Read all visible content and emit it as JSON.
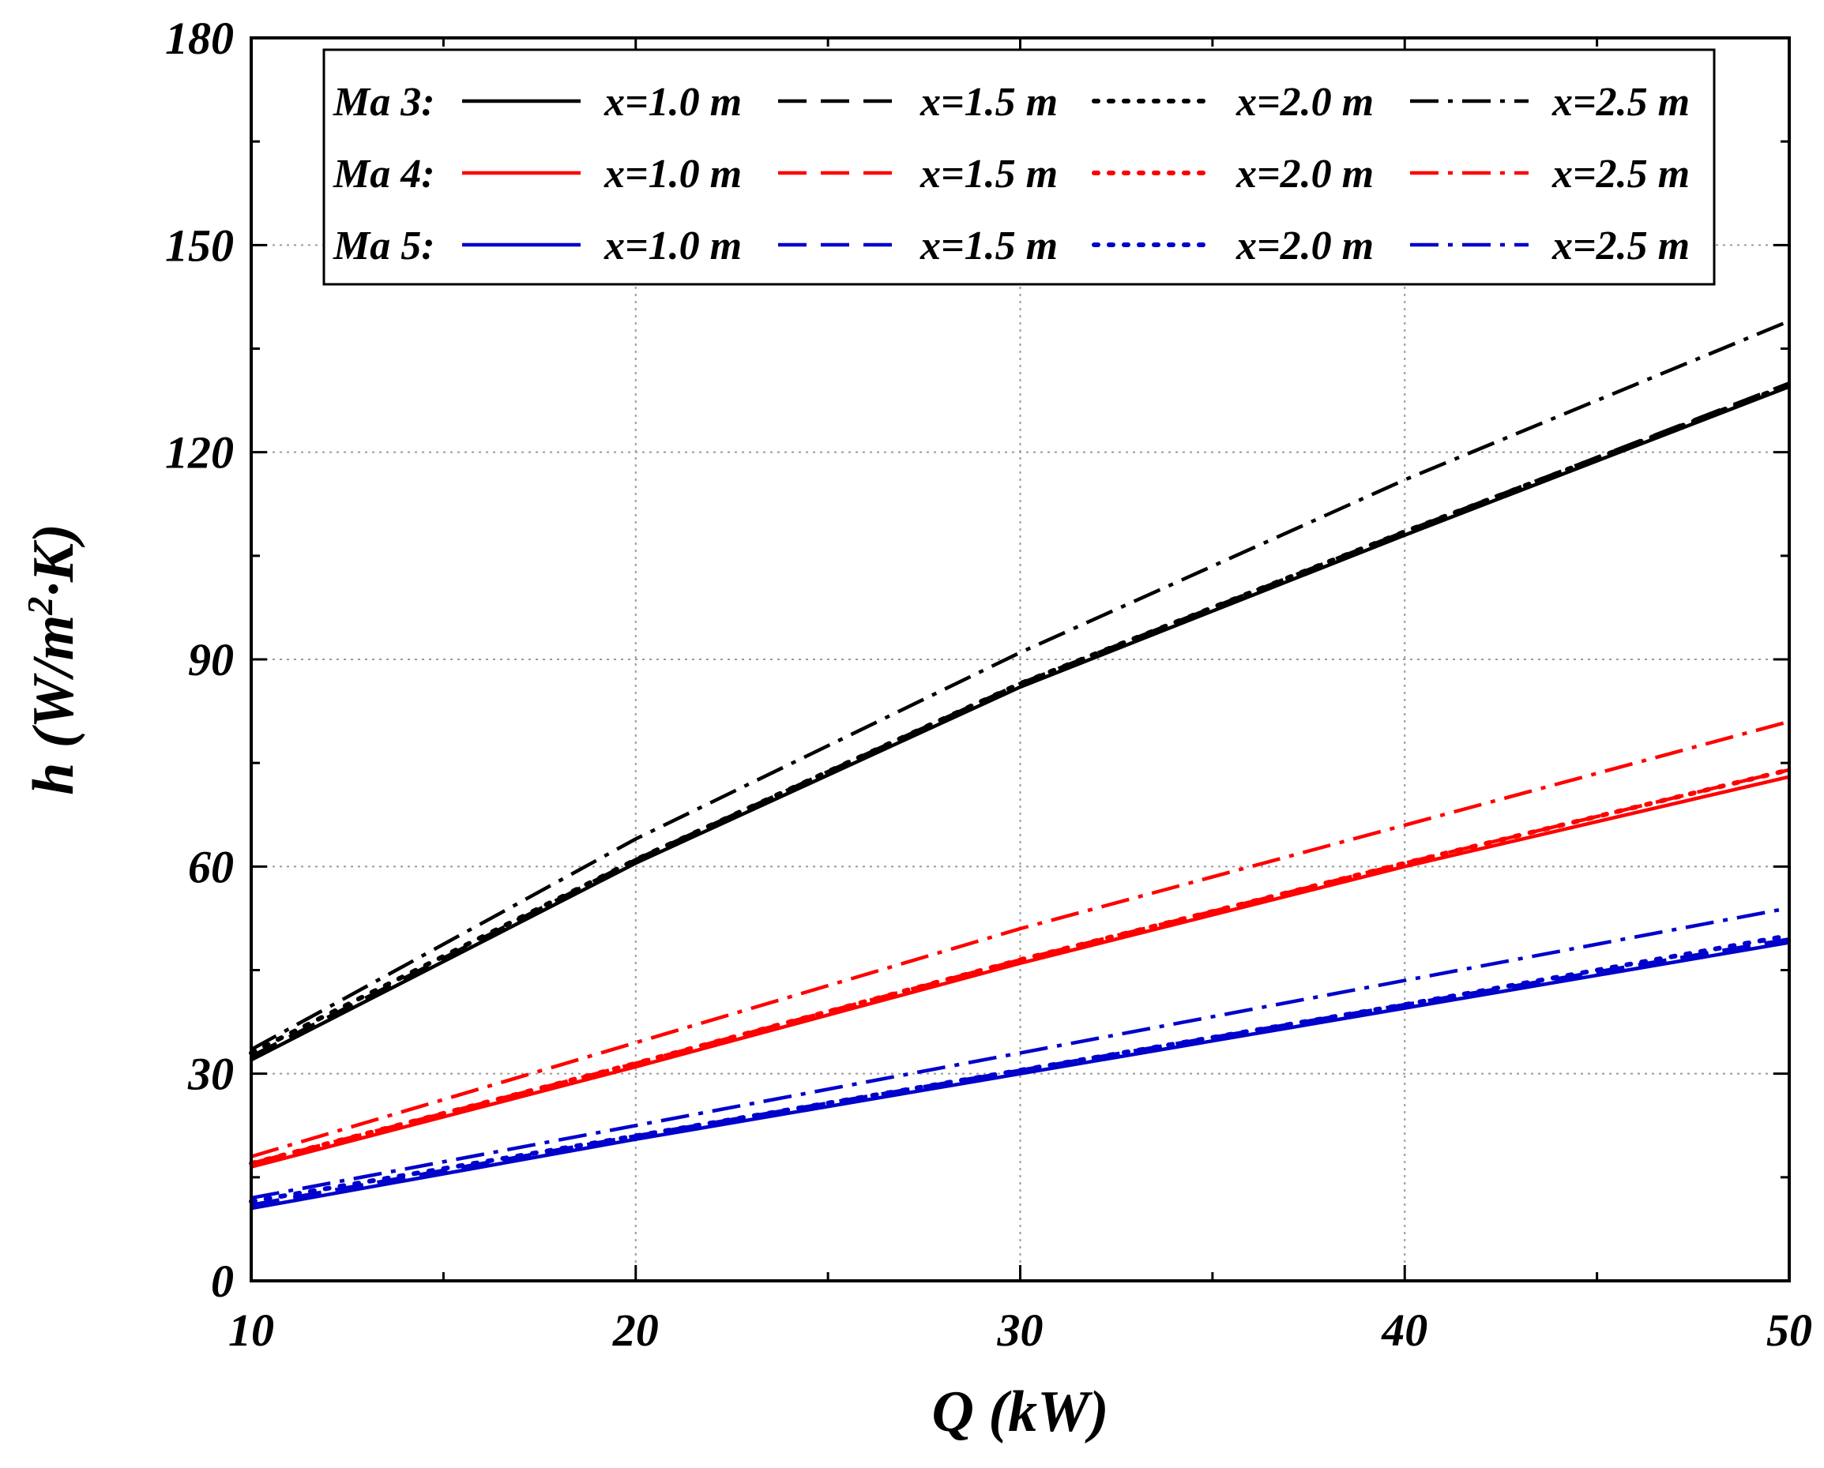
{
  "chart_data": {
    "type": "line",
    "title": "",
    "xlabel": "Q (kW)",
    "ylabel": {
      "prefix": "h (W/m",
      "sup": "2",
      "suffix": "·K)"
    },
    "xlim": [
      10,
      50
    ],
    "ylim": [
      0,
      180
    ],
    "xticks": [
      "10",
      "20",
      "30",
      "40",
      "50"
    ],
    "yticks": [
      "0",
      "30",
      "60",
      "90",
      "120",
      "150",
      "180"
    ],
    "grid": true,
    "legend_position": "top-left",
    "colors": {
      "Ma 3": "#000000",
      "Ma 4": "#ff0000",
      "Ma 5": "#0000cc"
    },
    "legend": {
      "groups": [
        "Ma 3:",
        "Ma 4:",
        "Ma 5:"
      ],
      "entries": [
        "x=1.0 m",
        "x=1.5 m",
        "x=2.0 m",
        "x=2.5 m"
      ]
    },
    "series": [
      {
        "name": "Ma 3: x=1.0 m",
        "group": "Ma 3",
        "style": "solid",
        "x": [
          10,
          20,
          30,
          40,
          50
        ],
        "y": [
          32,
          60.5,
          86,
          108,
          129.5
        ]
      },
      {
        "name": "Ma 3: x=1.5 m",
        "group": "Ma 3",
        "style": "dash",
        "x": [
          10,
          20,
          30,
          40,
          50
        ],
        "y": [
          32.5,
          61,
          86.5,
          108.5,
          130
        ]
      },
      {
        "name": "Ma 3: x=2.0 m",
        "group": "Ma 3",
        "style": "dot",
        "x": [
          10,
          20,
          30,
          40,
          50
        ],
        "y": [
          33,
          61,
          86.5,
          108.5,
          129.8
        ]
      },
      {
        "name": "Ma 3: x=2.5 m",
        "group": "Ma 3",
        "style": "dashdot",
        "x": [
          10,
          20,
          30,
          40,
          50
        ],
        "y": [
          33.5,
          64,
          91,
          116,
          139
        ]
      },
      {
        "name": "Ma 4: x=1.0 m",
        "group": "Ma 4",
        "style": "solid",
        "x": [
          10,
          20,
          30,
          40,
          50
        ],
        "y": [
          16.5,
          31,
          46,
          60,
          73
        ]
      },
      {
        "name": "Ma 4: x=1.5 m",
        "group": "Ma 4",
        "style": "dash",
        "x": [
          10,
          20,
          30,
          40,
          50
        ],
        "y": [
          17,
          31.5,
          46.5,
          60.5,
          74
        ]
      },
      {
        "name": "Ma 4: x=2.0 m",
        "group": "Ma 4",
        "style": "dot",
        "x": [
          10,
          20,
          30,
          40,
          50
        ],
        "y": [
          17,
          31.5,
          46.5,
          60.5,
          74
        ]
      },
      {
        "name": "Ma 4: x=2.5 m",
        "group": "Ma 4",
        "style": "dashdot",
        "x": [
          10,
          20,
          30,
          40,
          50
        ],
        "y": [
          18,
          34.5,
          51,
          66,
          81
        ]
      },
      {
        "name": "Ma 5: x=1.0 m",
        "group": "Ma 5",
        "style": "solid",
        "x": [
          10,
          20,
          30,
          40,
          50
        ],
        "y": [
          10.5,
          20.5,
          30,
          39.5,
          49
        ]
      },
      {
        "name": "Ma 5: x=1.5 m",
        "group": "Ma 5",
        "style": "dash",
        "x": [
          10,
          20,
          30,
          40,
          50
        ],
        "y": [
          11,
          21,
          30.5,
          40,
          49.5
        ]
      },
      {
        "name": "Ma 5: x=2.0 m",
        "group": "Ma 5",
        "style": "dot",
        "x": [
          10,
          20,
          30,
          40,
          50
        ],
        "y": [
          11.5,
          21,
          30.5,
          40,
          50
        ]
      },
      {
        "name": "Ma 5: x=2.5 m",
        "group": "Ma 5",
        "style": "dashdot",
        "x": [
          10,
          20,
          30,
          40,
          50
        ],
        "y": [
          12,
          22.5,
          33,
          43.5,
          54
        ]
      }
    ]
  }
}
